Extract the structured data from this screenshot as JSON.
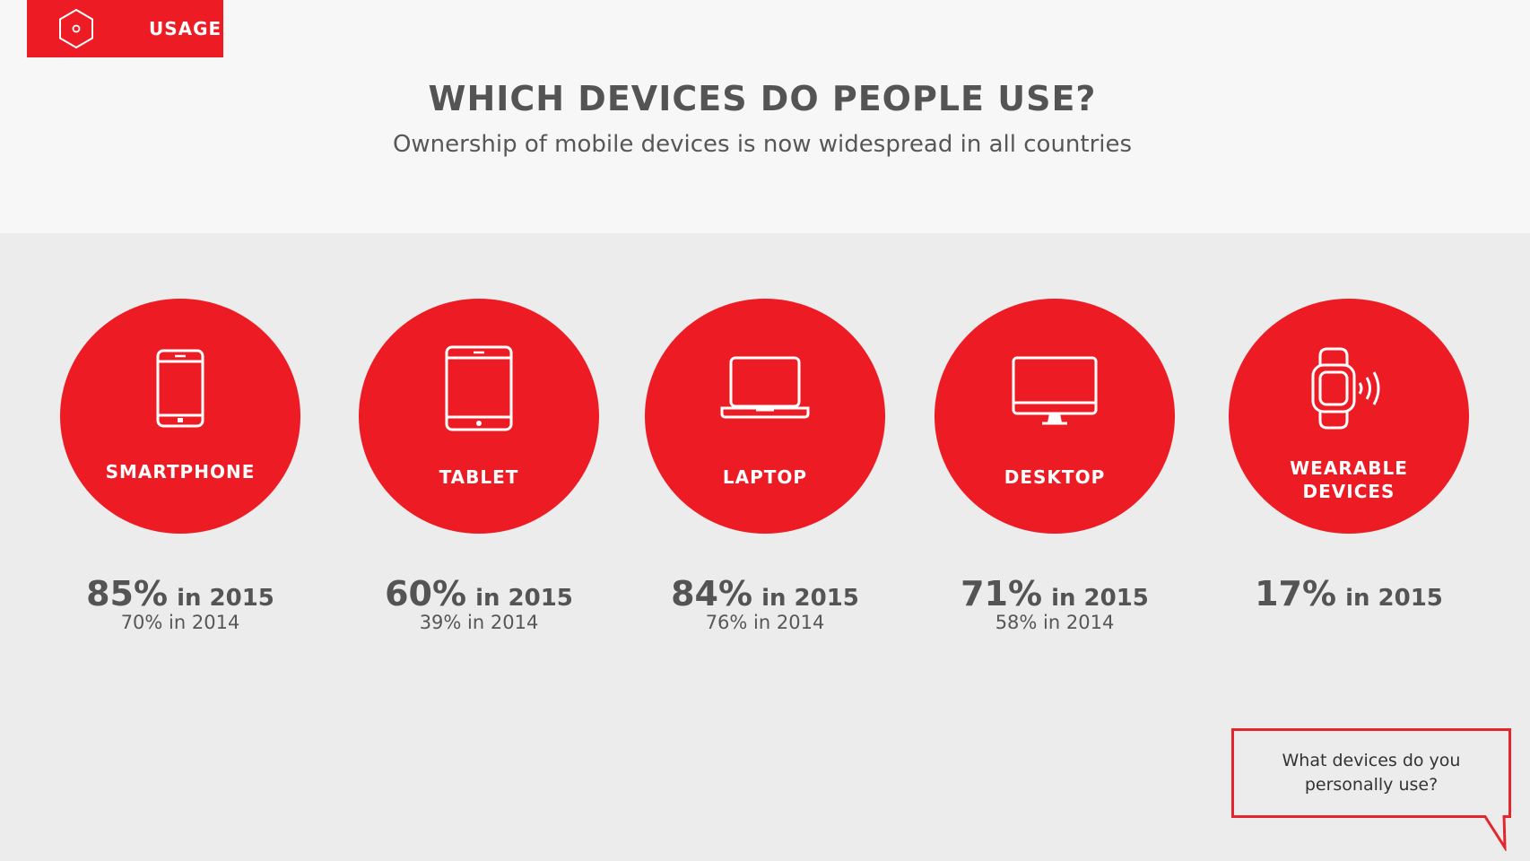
{
  "tag": {
    "label": "USAGE"
  },
  "header": {
    "title": "WHICH DEVICES DO PEOPLE USE?",
    "subtitle": "Ownership of mobile devices is now widespread in all countries"
  },
  "devices": [
    {
      "label": "SMARTPHONE",
      "icon": "smartphone-icon",
      "stat_2015": "85%",
      "stat_2015_suffix": "in 2015",
      "stat_2014": "70% in 2014"
    },
    {
      "label": "TABLET",
      "icon": "tablet-icon",
      "stat_2015": "60%",
      "stat_2015_suffix": "in 2015",
      "stat_2014": "39% in 2014"
    },
    {
      "label": "LAPTOP",
      "icon": "laptop-icon",
      "stat_2015": "84%",
      "stat_2015_suffix": "in 2015",
      "stat_2014": "76% in 2014"
    },
    {
      "label": "DESKTOP",
      "icon": "desktop-icon",
      "stat_2015": "71%",
      "stat_2015_suffix": "in 2015",
      "stat_2014": "58% in 2014"
    },
    {
      "label_line1": "WEARABLE",
      "label_line2": "DEVICES",
      "icon": "smartwatch-icon",
      "stat_2015": "17%",
      "stat_2015_suffix": "in 2015"
    }
  ],
  "callout": {
    "line1": "What devices do you",
    "line2": "personally use?"
  },
  "colors": {
    "accent": "#ed1c24",
    "text": "#545454",
    "top_bg": "#f7f7f7",
    "bottom_bg": "#ececec"
  }
}
